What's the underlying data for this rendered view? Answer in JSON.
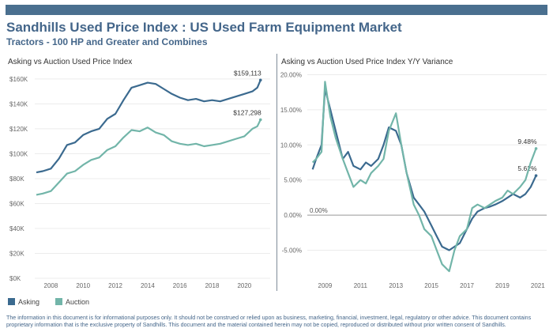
{
  "header": {
    "title": "Sandhills Used Price Index : US Used Farm Equipment Market",
    "subtitle": "Tractors - 100 HP and Greater and Combines",
    "color_bar": "#4a6f8f",
    "title_color": "#44668a"
  },
  "colors": {
    "asking": "#3b6a8f",
    "auction": "#72b5a9",
    "grid": "#ececec",
    "zero": "#999999"
  },
  "legend": {
    "asking": "Asking",
    "auction": "Auction"
  },
  "footer": "The information in this document is for informational purposes only.  It should not be construed or relied upon as business, marketing, financial, investment, legal, regulatory or other advice. This document contains proprietary information that is the exclusive property of Sandhills. This document and the material contained herein may not be copied, reproduced or distributed without prior written consent of Sandhills.",
  "chart_data": [
    {
      "type": "line",
      "title": "Asking vs Auction Used Price Index",
      "xlim": [
        2007.0,
        2021.6
      ],
      "ylim": [
        0,
        165000
      ],
      "x_ticks": [
        "2008",
        "2010",
        "2012",
        "2014",
        "2016",
        "2018",
        "2020"
      ],
      "y_ticks": [
        {
          "v": 0,
          "label": "$0K"
        },
        {
          "v": 20000,
          "label": "$20K"
        },
        {
          "v": 40000,
          "label": "$40K"
        },
        {
          "v": 60000,
          "label": "$60K"
        },
        {
          "v": 80000,
          "label": "$80K"
        },
        {
          "v": 100000,
          "label": "$100K"
        },
        {
          "v": 120000,
          "label": "$120K"
        },
        {
          "v": 140000,
          "label": "$140K"
        },
        {
          "v": 160000,
          "label": "$160K"
        }
      ],
      "grid": "horizontal",
      "series": [
        {
          "name": "Asking",
          "end_label": "$159,113",
          "points": [
            [
              2007.1,
              85000
            ],
            [
              2007.5,
              86000
            ],
            [
              2008.0,
              88000
            ],
            [
              2008.5,
              96000
            ],
            [
              2009.0,
              107000
            ],
            [
              2009.5,
              109000
            ],
            [
              2010.0,
              115000
            ],
            [
              2010.5,
              118000
            ],
            [
              2011.0,
              120000
            ],
            [
              2011.5,
              128000
            ],
            [
              2012.0,
              132000
            ],
            [
              2012.5,
              143000
            ],
            [
              2013.0,
              153000
            ],
            [
              2013.5,
              155000
            ],
            [
              2014.0,
              157000
            ],
            [
              2014.5,
              156000
            ],
            [
              2015.0,
              152000
            ],
            [
              2015.5,
              148000
            ],
            [
              2016.0,
              145000
            ],
            [
              2016.5,
              143000
            ],
            [
              2017.0,
              144000
            ],
            [
              2017.5,
              142000
            ],
            [
              2018.0,
              143000
            ],
            [
              2018.5,
              142000
            ],
            [
              2019.0,
              144000
            ],
            [
              2019.5,
              146000
            ],
            [
              2020.0,
              148000
            ],
            [
              2020.5,
              150000
            ],
            [
              2020.8,
              153000
            ],
            [
              2021.0,
              159113
            ]
          ]
        },
        {
          "name": "Auction",
          "end_label": "$127,298",
          "points": [
            [
              2007.1,
              67000
            ],
            [
              2007.5,
              68000
            ],
            [
              2008.0,
              70000
            ],
            [
              2008.5,
              77000
            ],
            [
              2009.0,
              84000
            ],
            [
              2009.5,
              86000
            ],
            [
              2010.0,
              91000
            ],
            [
              2010.5,
              95000
            ],
            [
              2011.0,
              97000
            ],
            [
              2011.5,
              103000
            ],
            [
              2012.0,
              106000
            ],
            [
              2012.5,
              113000
            ],
            [
              2013.0,
              119000
            ],
            [
              2013.5,
              118000
            ],
            [
              2014.0,
              121000
            ],
            [
              2014.5,
              117000
            ],
            [
              2015.0,
              115000
            ],
            [
              2015.5,
              110000
            ],
            [
              2016.0,
              108000
            ],
            [
              2016.5,
              107000
            ],
            [
              2017.0,
              108000
            ],
            [
              2017.5,
              106000
            ],
            [
              2018.0,
              107000
            ],
            [
              2018.5,
              108000
            ],
            [
              2019.0,
              110000
            ],
            [
              2019.5,
              112000
            ],
            [
              2020.0,
              114000
            ],
            [
              2020.5,
              120000
            ],
            [
              2020.8,
              122000
            ],
            [
              2021.0,
              127298
            ]
          ]
        }
      ]
    },
    {
      "type": "line",
      "title": "Asking vs Auction Used Price Index Y/Y Variance",
      "xlim": [
        2008.0,
        2021.5
      ],
      "ylim": [
        -9.0,
        20.5
      ],
      "x_ticks": [
        "2009",
        "2011",
        "2013",
        "2015",
        "2017",
        "2019",
        "2021"
      ],
      "y_ticks": [
        {
          "v": 20,
          "label": "20.00%"
        },
        {
          "v": 15,
          "label": "15.00%"
        },
        {
          "v": 10,
          "label": "10.00%"
        },
        {
          "v": 5,
          "label": "5.00%"
        },
        {
          "v": 0,
          "label": "0.00%"
        },
        {
          "v": -5,
          "label": "-5.00%"
        }
      ],
      "zero_label": "0.00%",
      "grid": "horizontal",
      "series": [
        {
          "name": "Asking",
          "end_label": "5.62%",
          "points": [
            [
              2008.3,
              6.5
            ],
            [
              2008.5,
              8.0
            ],
            [
              2008.8,
              10.0
            ],
            [
              2009.0,
              18.0
            ],
            [
              2009.3,
              15.0
            ],
            [
              2009.6,
              12.0
            ],
            [
              2010.0,
              8.0
            ],
            [
              2010.3,
              9.0
            ],
            [
              2010.6,
              7.0
            ],
            [
              2011.0,
              6.5
            ],
            [
              2011.3,
              7.5
            ],
            [
              2011.6,
              7.0
            ],
            [
              2012.0,
              8.0
            ],
            [
              2012.3,
              10.0
            ],
            [
              2012.6,
              12.5
            ],
            [
              2013.0,
              12.0
            ],
            [
              2013.3,
              10.0
            ],
            [
              2013.6,
              6.0
            ],
            [
              2014.0,
              2.5
            ],
            [
              2014.3,
              1.5
            ],
            [
              2014.6,
              0.5
            ],
            [
              2015.0,
              -1.5
            ],
            [
              2015.3,
              -3.0
            ],
            [
              2015.6,
              -4.5
            ],
            [
              2016.0,
              -5.0
            ],
            [
              2016.3,
              -4.5
            ],
            [
              2016.6,
              -4.0
            ],
            [
              2017.0,
              -2.0
            ],
            [
              2017.3,
              -0.5
            ],
            [
              2017.6,
              0.5
            ],
            [
              2018.0,
              1.0
            ],
            [
              2018.3,
              1.2
            ],
            [
              2018.6,
              1.5
            ],
            [
              2019.0,
              2.0
            ],
            [
              2019.3,
              2.5
            ],
            [
              2019.6,
              3.0
            ],
            [
              2020.0,
              2.5
            ],
            [
              2020.3,
              3.0
            ],
            [
              2020.6,
              4.0
            ],
            [
              2020.9,
              5.62
            ]
          ]
        },
        {
          "name": "Auction",
          "end_label": "9.48%",
          "points": [
            [
              2008.3,
              7.5
            ],
            [
              2008.5,
              8.0
            ],
            [
              2008.8,
              9.0
            ],
            [
              2009.0,
              19.0
            ],
            [
              2009.3,
              14.0
            ],
            [
              2009.6,
              11.0
            ],
            [
              2010.0,
              8.0
            ],
            [
              2010.3,
              6.0
            ],
            [
              2010.6,
              4.0
            ],
            [
              2011.0,
              5.0
            ],
            [
              2011.3,
              4.5
            ],
            [
              2011.6,
              6.0
            ],
            [
              2012.0,
              7.0
            ],
            [
              2012.3,
              8.0
            ],
            [
              2012.6,
              12.0
            ],
            [
              2013.0,
              14.5
            ],
            [
              2013.3,
              10.0
            ],
            [
              2013.6,
              6.0
            ],
            [
              2014.0,
              1.5
            ],
            [
              2014.3,
              0.0
            ],
            [
              2014.6,
              -2.0
            ],
            [
              2015.0,
              -3.0
            ],
            [
              2015.3,
              -5.0
            ],
            [
              2015.6,
              -7.0
            ],
            [
              2016.0,
              -8.0
            ],
            [
              2016.3,
              -5.0
            ],
            [
              2016.6,
              -3.0
            ],
            [
              2017.0,
              -2.0
            ],
            [
              2017.3,
              1.0
            ],
            [
              2017.6,
              1.5
            ],
            [
              2018.0,
              1.0
            ],
            [
              2018.3,
              1.5
            ],
            [
              2018.6,
              2.0
            ],
            [
              2019.0,
              2.5
            ],
            [
              2019.3,
              3.5
            ],
            [
              2019.6,
              3.0
            ],
            [
              2020.0,
              4.0
            ],
            [
              2020.3,
              5.0
            ],
            [
              2020.6,
              7.5
            ],
            [
              2020.9,
              9.48
            ]
          ]
        }
      ]
    }
  ]
}
